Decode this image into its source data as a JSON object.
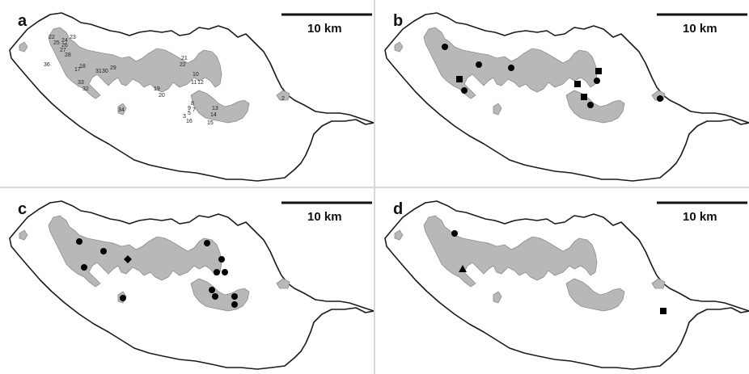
{
  "figure": {
    "scale_label": "10 km"
  },
  "panels": [
    {
      "letter": "a",
      "site_labels": [
        "22",
        "25",
        "24",
        "23",
        "26",
        "27",
        "28",
        "36",
        "17",
        "18",
        "31",
        "30",
        "29",
        "21",
        "22",
        "10",
        "11",
        "12",
        "33",
        "32",
        "19",
        "20",
        "8",
        "9",
        "7",
        "5",
        "13",
        "3",
        "16",
        "14",
        "15",
        "34",
        "2"
      ]
    },
    {
      "letter": "b"
    },
    {
      "letter": "c"
    },
    {
      "letter": "d"
    }
  ],
  "legend_markers": {
    "circle": "site record",
    "square": "site record",
    "diamond": "site record",
    "triangle": "site record"
  },
  "colors": {
    "outline": "#1a1a1a",
    "forest": "#b8b8b8",
    "marker": "#000000"
  }
}
